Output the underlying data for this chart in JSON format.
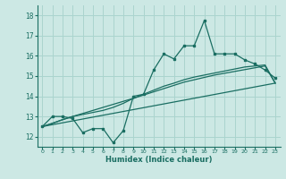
{
  "title": "",
  "xlabel": "Humidex (Indice chaleur)",
  "xlim": [
    -0.5,
    23.5
  ],
  "ylim": [
    11.5,
    18.5
  ],
  "xticks": [
    0,
    1,
    2,
    3,
    4,
    5,
    6,
    7,
    8,
    9,
    10,
    11,
    12,
    13,
    14,
    15,
    16,
    17,
    18,
    19,
    20,
    21,
    22,
    23
  ],
  "yticks": [
    12,
    13,
    14,
    15,
    16,
    17,
    18
  ],
  "bg_color": "#cce8e4",
  "line_color": "#1a6e62",
  "grid_color": "#aad4ce",
  "main_x": [
    0,
    1,
    2,
    3,
    4,
    5,
    6,
    7,
    8,
    9,
    10,
    11,
    12,
    13,
    14,
    15,
    16,
    17,
    18,
    19,
    20,
    21,
    22,
    23
  ],
  "main_y": [
    12.5,
    13.0,
    13.0,
    12.9,
    12.2,
    12.4,
    12.4,
    11.7,
    12.3,
    14.0,
    14.1,
    15.3,
    16.1,
    15.85,
    16.5,
    16.5,
    17.75,
    16.1,
    16.1,
    16.1,
    15.8,
    15.6,
    15.3,
    14.9
  ],
  "line2_x": [
    0,
    1,
    2,
    3,
    4,
    5,
    6,
    7,
    8,
    9,
    10,
    11,
    12,
    13,
    14,
    15,
    16,
    17,
    18,
    19,
    20,
    21,
    22,
    23
  ],
  "line2_y": [
    12.5,
    12.65,
    12.85,
    13.0,
    13.1,
    13.2,
    13.3,
    13.45,
    13.65,
    13.9,
    14.1,
    14.3,
    14.5,
    14.65,
    14.82,
    14.95,
    15.05,
    15.15,
    15.25,
    15.35,
    15.45,
    15.5,
    15.55,
    14.65
  ],
  "line3_x": [
    0,
    3,
    9,
    14,
    17,
    22,
    23
  ],
  "line3_y": [
    12.5,
    13.0,
    13.9,
    14.7,
    15.05,
    15.5,
    14.65
  ],
  "line4_x": [
    0,
    23
  ],
  "line4_y": [
    12.5,
    14.65
  ]
}
